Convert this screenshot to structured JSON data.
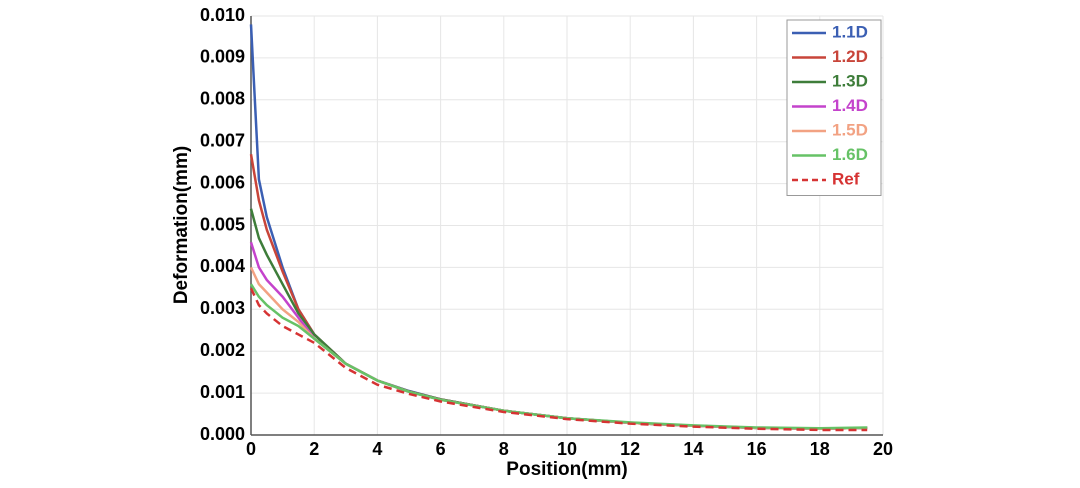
{
  "chart_data": {
    "type": "line",
    "x": [
      0,
      0.25,
      0.5,
      1,
      1.5,
      2,
      3,
      4,
      5,
      6,
      8,
      10,
      12,
      14,
      16,
      18,
      19.5
    ],
    "xlabel": "Position(mm)",
    "ylabel": "Deformation(mm)",
    "xlim": [
      0,
      20
    ],
    "xticks": [
      0,
      2,
      4,
      6,
      8,
      10,
      12,
      14,
      16,
      18,
      20
    ],
    "ylim": [
      0,
      0.01
    ],
    "yticks": [
      {
        "value": 0,
        "label": "0.000"
      },
      0.001,
      0.002,
      0.003,
      0.004,
      0.005,
      0.006,
      0.007,
      0.008,
      0.009,
      {
        "value": 0.01,
        "label": "0.010"
      }
    ],
    "grid": true,
    "legend": "upper right",
    "series": [
      {
        "name": "1.1D",
        "color": "#3b5fb3",
        "dash": false,
        "values": [
          0.0098,
          0.0061,
          0.0052,
          0.004,
          0.003,
          0.0024,
          0.0017,
          0.0013,
          0.00105,
          0.00085,
          0.00058,
          0.0004,
          0.00029,
          0.00022,
          0.00017,
          0.00015,
          0.00017
        ]
      },
      {
        "name": "1.2D",
        "color": "#c8453a",
        "dash": false,
        "values": [
          0.0067,
          0.0056,
          0.0049,
          0.0039,
          0.003,
          0.0024,
          0.0017,
          0.0013,
          0.00104,
          0.00085,
          0.00058,
          0.0004,
          0.00029,
          0.00022,
          0.00017,
          0.00015,
          0.00017
        ]
      },
      {
        "name": "1.3D",
        "color": "#3e7d3a",
        "dash": false,
        "values": [
          0.0054,
          0.0047,
          0.0043,
          0.0036,
          0.0029,
          0.0024,
          0.0017,
          0.0013,
          0.00104,
          0.00085,
          0.00058,
          0.0004,
          0.00029,
          0.00022,
          0.00017,
          0.00015,
          0.00017
        ]
      },
      {
        "name": "1.4D",
        "color": "#c443cc",
        "dash": false,
        "values": [
          0.0046,
          0.004,
          0.0037,
          0.0033,
          0.0028,
          0.0023,
          0.0017,
          0.0013,
          0.00103,
          0.00084,
          0.00058,
          0.0004,
          0.00029,
          0.00022,
          0.00017,
          0.00015,
          0.00017
        ]
      },
      {
        "name": "1.5D",
        "color": "#f2a283",
        "dash": false,
        "values": [
          0.004,
          0.0036,
          0.0034,
          0.003,
          0.0027,
          0.0023,
          0.0017,
          0.0013,
          0.00103,
          0.00084,
          0.00058,
          0.0004,
          0.00029,
          0.00022,
          0.00017,
          0.00015,
          0.00017
        ]
      },
      {
        "name": "1.6D",
        "color": "#66c266",
        "dash": false,
        "values": [
          0.0036,
          0.0033,
          0.0031,
          0.0028,
          0.0026,
          0.0023,
          0.0017,
          0.0013,
          0.00103,
          0.00084,
          0.00058,
          0.0004,
          0.0003,
          0.00023,
          0.00018,
          0.00016,
          0.00018
        ]
      },
      {
        "name": "Ref",
        "color": "#d63333",
        "dash": true,
        "values": [
          0.0035,
          0.0031,
          0.0029,
          0.0026,
          0.0024,
          0.0022,
          0.0016,
          0.0012,
          0.00098,
          0.0008,
          0.00055,
          0.00038,
          0.00027,
          0.0002,
          0.00015,
          0.00012,
          0.00012
        ]
      }
    ]
  }
}
